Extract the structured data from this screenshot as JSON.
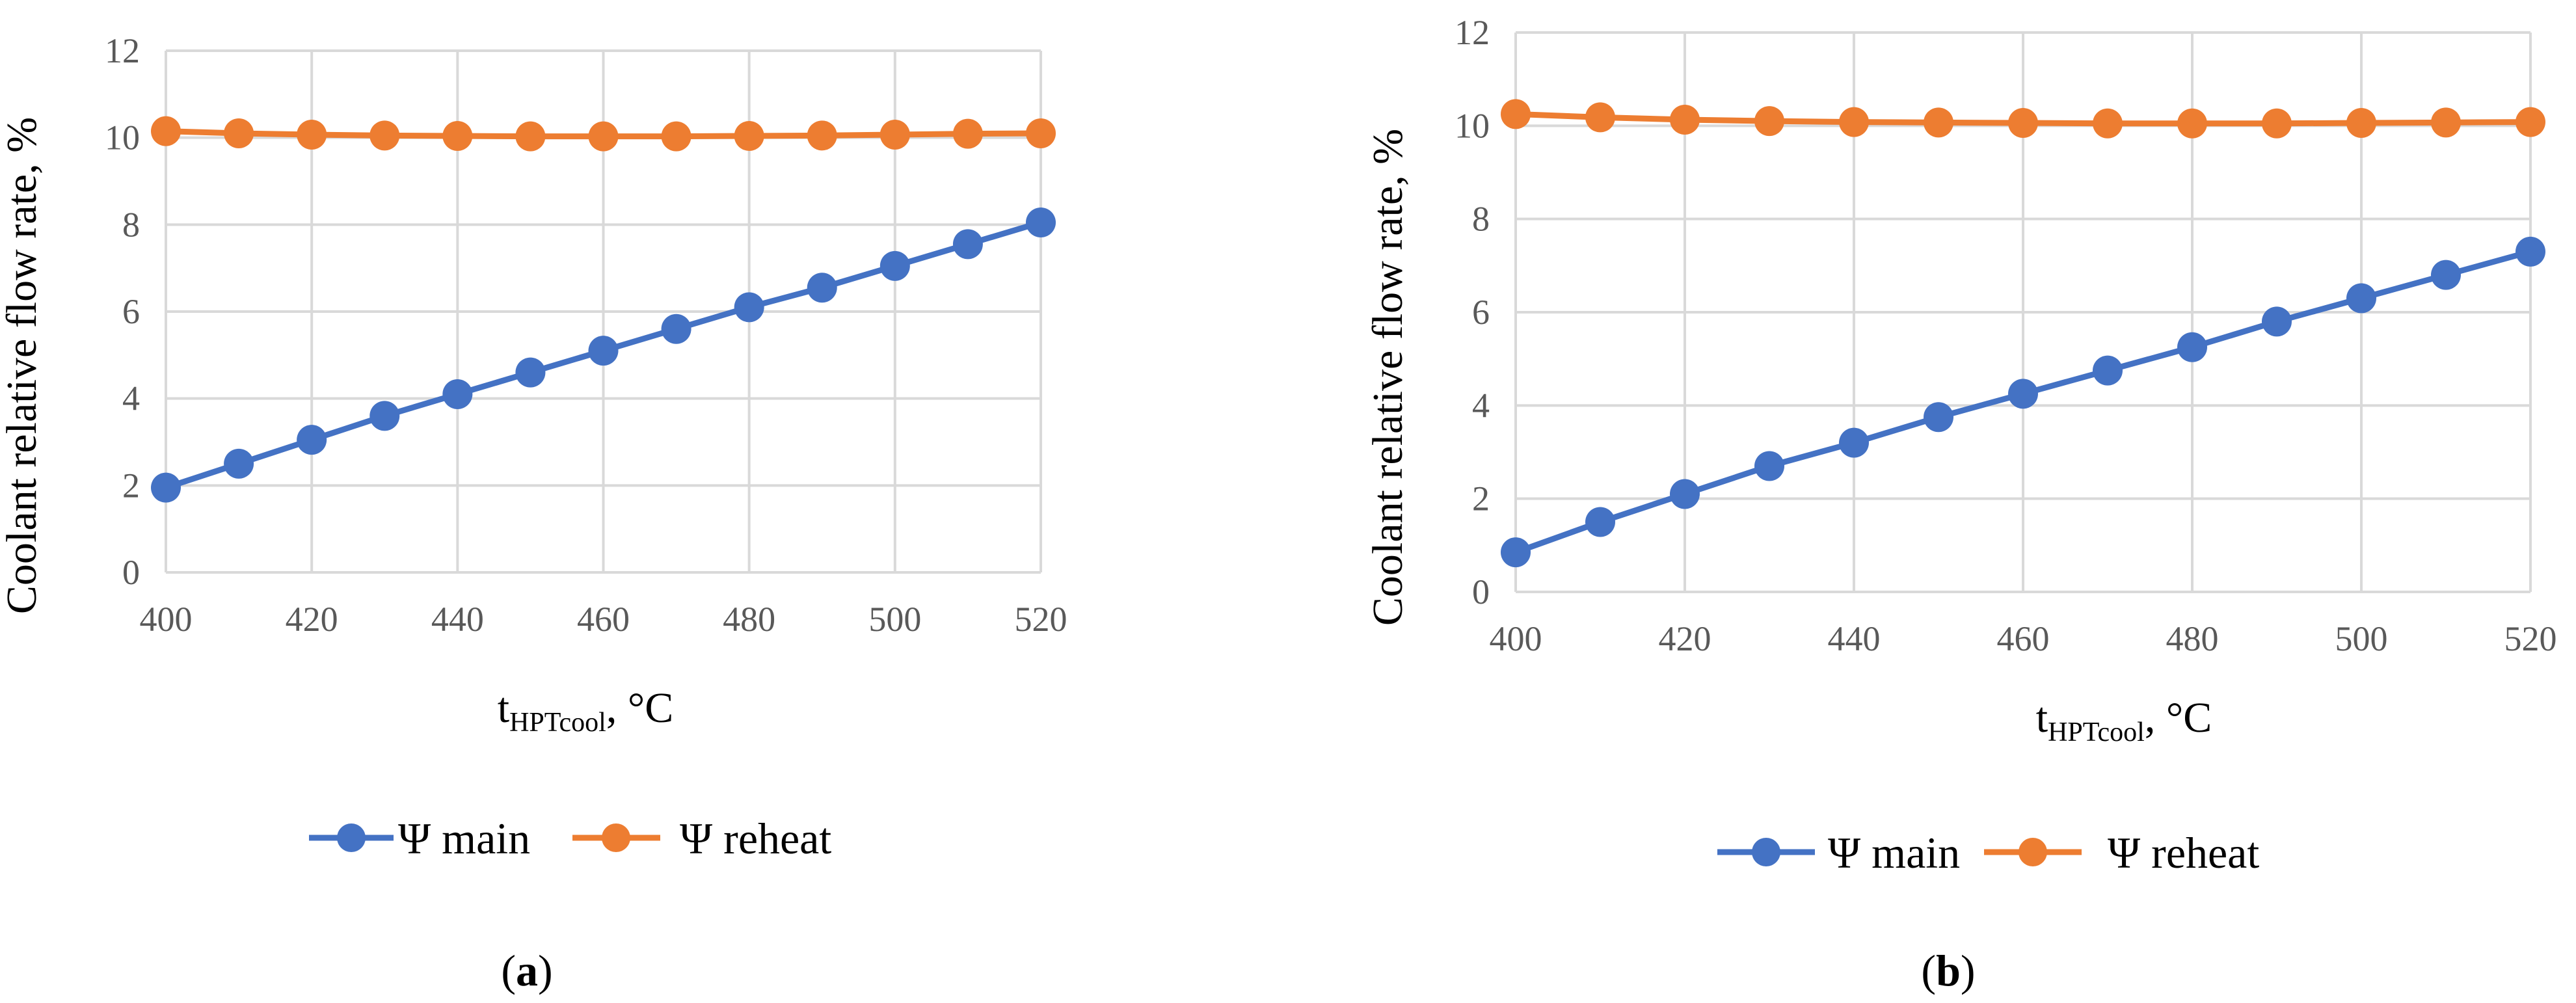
{
  "chart_data": [
    {
      "type": "line",
      "panel_label": "a",
      "x": [
        400,
        410,
        420,
        430,
        440,
        450,
        460,
        470,
        480,
        490,
        500,
        510,
        520
      ],
      "xlim": [
        400,
        520
      ],
      "xticks": [
        "400",
        "420",
        "440",
        "460",
        "480",
        "500",
        "520"
      ],
      "ylim": [
        0,
        12
      ],
      "yticks": [
        "0",
        "2",
        "4",
        "6",
        "8",
        "10",
        "12"
      ],
      "xlabel": {
        "main": "t",
        "sub": "HPTcool",
        "suffix": ", °C"
      },
      "ylabel": "Coolant relative flow rate, %",
      "grid": true,
      "legend_position": "bottom",
      "series": [
        {
          "name": "Ψ main",
          "color": "#4472C4",
          "values": [
            1.95,
            2.5,
            3.05,
            3.6,
            4.1,
            4.6,
            5.1,
            5.6,
            6.1,
            6.55,
            7.05,
            7.55,
            8.05
          ]
        },
        {
          "name": "Ψ reheat",
          "color": "#ED7D31",
          "values": [
            10.15,
            10.1,
            10.07,
            10.05,
            10.04,
            10.03,
            10.03,
            10.03,
            10.04,
            10.05,
            10.07,
            10.09,
            10.1
          ]
        }
      ]
    },
    {
      "type": "line",
      "panel_label": "b",
      "x": [
        400,
        410,
        420,
        430,
        440,
        450,
        460,
        470,
        480,
        490,
        500,
        510,
        520
      ],
      "xlim": [
        400,
        520
      ],
      "xticks": [
        "400",
        "420",
        "440",
        "460",
        "480",
        "500",
        "520"
      ],
      "ylim": [
        0,
        12
      ],
      "yticks": [
        "0",
        "2",
        "4",
        "6",
        "8",
        "10",
        "12"
      ],
      "xlabel": {
        "main": "t",
        "sub": "HPTcool",
        "suffix": ", °C"
      },
      "ylabel": "Coolant relative flow rate, %",
      "grid": true,
      "legend_position": "bottom",
      "series": [
        {
          "name": "Ψ main",
          "color": "#4472C4",
          "values": [
            0.85,
            1.5,
            2.1,
            2.7,
            3.2,
            3.75,
            4.25,
            4.75,
            5.25,
            5.8,
            6.3,
            6.8,
            7.3
          ]
        },
        {
          "name": "Ψ reheat",
          "color": "#ED7D31",
          "values": [
            10.25,
            10.18,
            10.13,
            10.1,
            10.08,
            10.07,
            10.06,
            10.05,
            10.05,
            10.05,
            10.06,
            10.07,
            10.08
          ]
        }
      ]
    }
  ]
}
